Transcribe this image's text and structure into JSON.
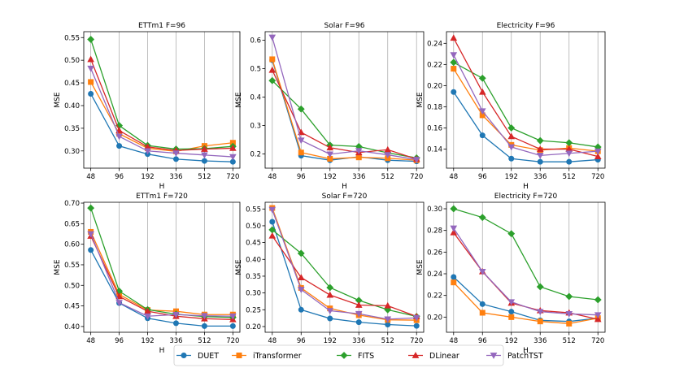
{
  "legend": {
    "placement": "bottom-center",
    "entries": [
      {
        "name": "DUET",
        "color": "#1f77b4",
        "marker": "circle"
      },
      {
        "name": "iTransformer",
        "color": "#ff7f0e",
        "marker": "square"
      },
      {
        "name": "FITS",
        "color": "#2ca02c",
        "marker": "diamond"
      },
      {
        "name": "DLinear",
        "color": "#d62728",
        "marker": "triangle-up"
      },
      {
        "name": "PatchTST",
        "color": "#9467bd",
        "marker": "triangle-down"
      }
    ]
  },
  "chart_data": [
    {
      "type": "line",
      "title": "ETTm1 F=96",
      "xlabel": "H",
      "ylabel": "MSE",
      "categories": [
        "48",
        "96",
        "192",
        "336",
        "512",
        "720"
      ],
      "ylim": [
        0.262,
        0.563
      ],
      "yticks": [
        0.3,
        0.35,
        0.4,
        0.45,
        0.5,
        0.55
      ],
      "ytick_labels": [
        "0.30",
        "0.35",
        "0.40",
        "0.45",
        "0.50",
        "0.55"
      ],
      "grid": "vertical",
      "series": [
        {
          "name": "DUET",
          "values": [
            0.426,
            0.311,
            0.293,
            0.282,
            0.278,
            0.276
          ]
        },
        {
          "name": "iTransformer",
          "values": [
            0.452,
            0.338,
            0.306,
            0.299,
            0.311,
            0.318
          ]
        },
        {
          "name": "FITS",
          "values": [
            0.546,
            0.356,
            0.312,
            0.304,
            0.305,
            0.31
          ]
        },
        {
          "name": "DLinear",
          "values": [
            0.502,
            0.345,
            0.309,
            0.301,
            0.304,
            0.306
          ]
        },
        {
          "name": "PatchTST",
          "values": [
            0.482,
            0.332,
            0.3,
            0.295,
            0.291,
            0.287
          ]
        }
      ]
    },
    {
      "type": "line",
      "title": "Solar F=96",
      "xlabel": "H",
      "ylabel": "MSE",
      "categories": [
        "48",
        "96",
        "192",
        "336",
        "512",
        "720"
      ],
      "ylim": [
        0.15,
        0.63
      ],
      "yticks": [
        0.2,
        0.3,
        0.4,
        0.5,
        0.6
      ],
      "ytick_labels": [
        "0.2",
        "0.3",
        "0.4",
        "0.5",
        "0.6"
      ],
      "grid": "vertical",
      "series": [
        {
          "name": "DUET",
          "values": [
            0.53,
            0.194,
            0.178,
            0.19,
            0.178,
            0.174
          ]
        },
        {
          "name": "iTransformer",
          "values": [
            0.533,
            0.205,
            0.183,
            0.188,
            0.185,
            0.178
          ]
        },
        {
          "name": "FITS",
          "values": [
            0.458,
            0.358,
            0.231,
            0.226,
            0.204,
            0.186
          ]
        },
        {
          "name": "DLinear",
          "values": [
            0.495,
            0.276,
            0.222,
            0.205,
            0.215,
            0.182
          ]
        },
        {
          "name": "PatchTST",
          "values": [
            0.61,
            0.248,
            0.199,
            0.211,
            0.197,
            0.18
          ]
        }
      ]
    },
    {
      "type": "line",
      "title": "Electricity F=96",
      "xlabel": "H",
      "ylabel": "MSE",
      "categories": [
        "48",
        "96",
        "192",
        "336",
        "512",
        "720"
      ],
      "ylim": [
        0.122,
        0.251
      ],
      "yticks": [
        0.14,
        0.16,
        0.18,
        0.2,
        0.22,
        0.24
      ],
      "ytick_labels": [
        "0.14",
        "0.16",
        "0.18",
        "0.20",
        "0.22",
        "0.24"
      ],
      "grid": "vertical",
      "series": [
        {
          "name": "DUET",
          "values": [
            0.194,
            0.153,
            0.131,
            0.128,
            0.128,
            0.13
          ]
        },
        {
          "name": "iTransformer",
          "values": [
            0.216,
            0.172,
            0.144,
            0.139,
            0.141,
            0.138
          ]
        },
        {
          "name": "FITS",
          "values": [
            0.222,
            0.207,
            0.16,
            0.148,
            0.146,
            0.142
          ]
        },
        {
          "name": "DLinear",
          "values": [
            0.245,
            0.194,
            0.152,
            0.14,
            0.14,
            0.133
          ]
        },
        {
          "name": "PatchTST",
          "values": [
            0.229,
            0.176,
            0.142,
            0.134,
            0.136,
            0.138
          ]
        }
      ]
    },
    {
      "type": "line",
      "title": "ETTm1 F=720",
      "xlabel": "H",
      "ylabel": "MSE",
      "categories": [
        "48",
        "96",
        "192",
        "336",
        "512",
        "720"
      ],
      "ylim": [
        0.386,
        0.702
      ],
      "yticks": [
        0.4,
        0.45,
        0.5,
        0.55,
        0.6,
        0.65,
        0.7
      ],
      "ytick_labels": [
        "0.40",
        "0.45",
        "0.50",
        "0.55",
        "0.60",
        "0.65",
        "0.70"
      ],
      "grid": "vertical",
      "series": [
        {
          "name": "DUET",
          "values": [
            0.586,
            0.457,
            0.42,
            0.408,
            0.401,
            0.401
          ]
        },
        {
          "name": "iTransformer",
          "values": [
            0.63,
            0.478,
            0.44,
            0.437,
            0.429,
            0.429
          ]
        },
        {
          "name": "FITS",
          "values": [
            0.688,
            0.486,
            0.441,
            0.43,
            0.424,
            0.422
          ]
        },
        {
          "name": "DLinear",
          "values": [
            0.62,
            0.473,
            0.437,
            0.425,
            0.419,
            0.417
          ]
        },
        {
          "name": "PatchTST",
          "values": [
            0.625,
            0.458,
            0.425,
            0.429,
            0.426,
            0.425
          ]
        }
      ]
    },
    {
      "type": "line",
      "title": "Solar F=720",
      "xlabel": "H",
      "ylabel": "MSE",
      "categories": [
        "48",
        "96",
        "192",
        "336",
        "512",
        "720"
      ],
      "ylim": [
        0.183,
        0.57
      ],
      "yticks": [
        0.2,
        0.25,
        0.3,
        0.35,
        0.4,
        0.45,
        0.5,
        0.55
      ],
      "ytick_labels": [
        "0.20",
        "0.25",
        "0.30",
        "0.35",
        "0.40",
        "0.45",
        "0.50",
        "0.55"
      ],
      "grid": "vertical",
      "series": [
        {
          "name": "DUET",
          "values": [
            0.512,
            0.25,
            0.224,
            0.213,
            0.206,
            0.202
          ]
        },
        {
          "name": "iTransformer",
          "values": [
            0.553,
            0.315,
            0.254,
            0.234,
            0.22,
            0.219
          ]
        },
        {
          "name": "FITS",
          "values": [
            0.488,
            0.418,
            0.316,
            0.278,
            0.25,
            0.23
          ]
        },
        {
          "name": "DLinear",
          "values": [
            0.47,
            0.346,
            0.294,
            0.264,
            0.262,
            0.23
          ]
        },
        {
          "name": "PatchTST",
          "values": [
            0.548,
            0.31,
            0.247,
            0.238,
            0.222,
            0.226
          ]
        }
      ]
    },
    {
      "type": "line",
      "title": "Electricity F=720",
      "xlabel": "H",
      "ylabel": "MSE",
      "categories": [
        "48",
        "96",
        "192",
        "336",
        "512",
        "720"
      ],
      "ylim": [
        0.186,
        0.306
      ],
      "yticks": [
        0.2,
        0.22,
        0.24,
        0.26,
        0.28,
        0.3
      ],
      "ytick_labels": [
        "0.20",
        "0.22",
        "0.24",
        "0.26",
        "0.28",
        "0.30"
      ],
      "grid": "vertical",
      "series": [
        {
          "name": "DUET",
          "values": [
            0.237,
            0.212,
            0.205,
            0.197,
            0.196,
            0.199
          ]
        },
        {
          "name": "iTransformer",
          "values": [
            0.232,
            0.204,
            0.2,
            0.196,
            0.194,
            0.199
          ]
        },
        {
          "name": "FITS",
          "values": [
            0.3,
            0.292,
            0.277,
            0.228,
            0.219,
            0.216
          ]
        },
        {
          "name": "DLinear",
          "values": [
            0.278,
            0.242,
            0.213,
            0.206,
            0.204,
            0.198
          ]
        },
        {
          "name": "PatchTST",
          "values": [
            0.282,
            0.242,
            0.214,
            0.205,
            0.203,
            0.202
          ]
        }
      ]
    }
  ]
}
